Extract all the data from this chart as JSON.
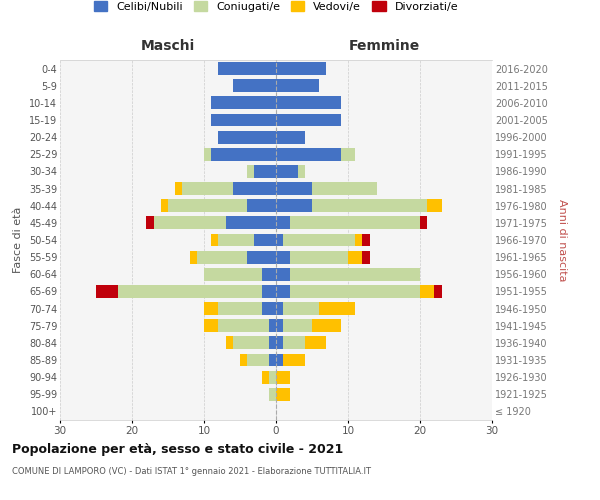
{
  "age_groups": [
    "100+",
    "95-99",
    "90-94",
    "85-89",
    "80-84",
    "75-79",
    "70-74",
    "65-69",
    "60-64",
    "55-59",
    "50-54",
    "45-49",
    "40-44",
    "35-39",
    "30-34",
    "25-29",
    "20-24",
    "15-19",
    "10-14",
    "5-9",
    "0-4"
  ],
  "birth_years": [
    "≤ 1920",
    "1921-1925",
    "1926-1930",
    "1931-1935",
    "1936-1940",
    "1941-1945",
    "1946-1950",
    "1951-1955",
    "1956-1960",
    "1961-1965",
    "1966-1970",
    "1971-1975",
    "1976-1980",
    "1981-1985",
    "1986-1990",
    "1991-1995",
    "1996-2000",
    "2001-2005",
    "2006-2010",
    "2011-2015",
    "2016-2020"
  ],
  "maschi_celibi": [
    0,
    0,
    0,
    1,
    1,
    1,
    2,
    2,
    2,
    4,
    3,
    7,
    4,
    6,
    3,
    9,
    8,
    9,
    9,
    6,
    8
  ],
  "maschi_coniugati": [
    0,
    1,
    1,
    3,
    5,
    7,
    6,
    20,
    8,
    7,
    5,
    10,
    11,
    7,
    1,
    1,
    0,
    0,
    0,
    0,
    0
  ],
  "maschi_vedovi": [
    0,
    0,
    1,
    1,
    1,
    2,
    2,
    0,
    0,
    1,
    1,
    0,
    1,
    1,
    0,
    0,
    0,
    0,
    0,
    0,
    0
  ],
  "maschi_divorziati": [
    0,
    0,
    0,
    0,
    0,
    0,
    0,
    3,
    0,
    0,
    0,
    1,
    0,
    0,
    0,
    0,
    0,
    0,
    0,
    0,
    0
  ],
  "femmine_celibi": [
    0,
    0,
    0,
    1,
    1,
    1,
    1,
    2,
    2,
    2,
    1,
    2,
    5,
    5,
    3,
    9,
    4,
    9,
    9,
    6,
    7
  ],
  "femmine_coniugati": [
    0,
    0,
    0,
    0,
    3,
    4,
    5,
    18,
    18,
    8,
    10,
    18,
    16,
    9,
    1,
    2,
    0,
    0,
    0,
    0,
    0
  ],
  "femmine_vedovi": [
    0,
    2,
    2,
    3,
    3,
    4,
    5,
    2,
    0,
    2,
    1,
    0,
    2,
    0,
    0,
    0,
    0,
    0,
    0,
    0,
    0
  ],
  "femmine_divorziati": [
    0,
    0,
    0,
    0,
    0,
    0,
    0,
    1,
    0,
    1,
    1,
    1,
    0,
    0,
    0,
    0,
    0,
    0,
    0,
    0,
    0
  ],
  "color_celibi": "#4472c4",
  "color_coniugati": "#c5d9a0",
  "color_vedovi": "#ffc000",
  "color_divorziati": "#c0000b",
  "xlim": 30,
  "title": "Popolazione per età, sesso e stato civile - 2021",
  "subtitle": "COMUNE DI LAMPORO (VC) - Dati ISTAT 1° gennaio 2021 - Elaborazione TUTTITALIA.IT",
  "ylabel_left": "Fasce di età",
  "ylabel_right": "Anni di nascita",
  "xlabel_left": "Maschi",
  "xlabel_right": "Femmine",
  "legend_labels": [
    "Celibi/Nubili",
    "Coniugati/e",
    "Vedovi/e",
    "Divorziati/e"
  ],
  "background_color": "#ffffff",
  "ax_facecolor": "#f5f5f5"
}
